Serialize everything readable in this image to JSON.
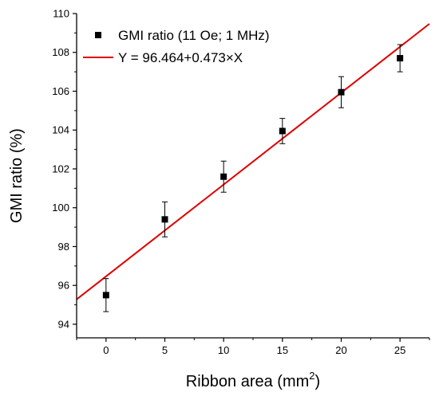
{
  "chart_data": {
    "type": "scatter",
    "xlabel": "Ribbon area",
    "xlabel_unit": "mm",
    "xlabel_unit_exp": "2",
    "ylabel": "GMI ratio (%)",
    "xlim": [
      -2.5,
      27.5
    ],
    "ylim": [
      93.3,
      110
    ],
    "x_ticks": [
      0,
      5,
      10,
      15,
      20,
      25
    ],
    "y_ticks": [
      94,
      96,
      98,
      100,
      102,
      104,
      106,
      108,
      110
    ],
    "grid": false,
    "legend_position": "top-left",
    "series": [
      {
        "name": "GMI ratio (11 Oe; 1 MHz)",
        "marker": "square",
        "color": "#000000",
        "x": [
          0,
          5,
          10,
          15,
          20,
          25
        ],
        "y": [
          95.5,
          99.4,
          101.6,
          103.95,
          105.95,
          107.7
        ],
        "err": [
          0.85,
          0.9,
          0.8,
          0.65,
          0.8,
          0.7
        ]
      },
      {
        "name": "Y = 96.464+0.473×X",
        "type": "line",
        "color": "#e00000",
        "intercept": 96.464,
        "slope": 0.473,
        "x_range": [
          -2.5,
          27.5
        ]
      }
    ]
  }
}
